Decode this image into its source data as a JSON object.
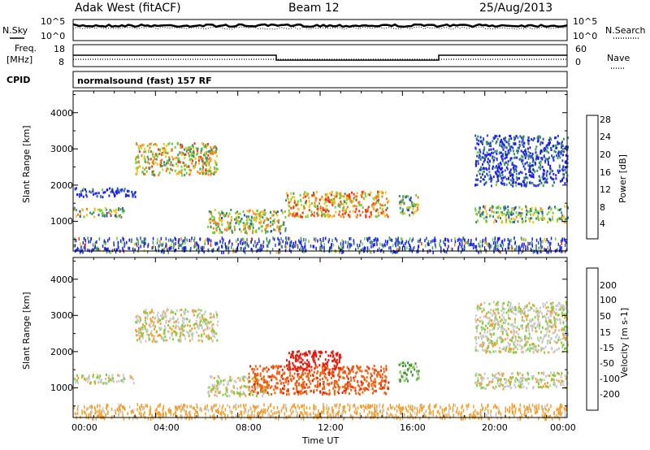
{
  "header": {
    "radar": "Adak West (fitACF)",
    "beam": "Beam 12",
    "date": "25/Aug/2013"
  },
  "strip": {
    "nsky_label": "N.Sky",
    "nsky_ticks": [
      "10^5",
      "10^0"
    ],
    "nsearch_label": "N.Search",
    "nsearch_ticks": [
      "10^5",
      "10^0"
    ],
    "freq_label_1": "Freq.",
    "freq_label_2": "[MHz]",
    "freq_ticks": [
      "18",
      "8"
    ],
    "nave_label": "Nave",
    "nave_ticks": [
      "60",
      "0"
    ],
    "cpid_label": "CPID",
    "cpid_text": "normalsound (fast) 157 RF"
  },
  "chart_data": [
    {
      "type": "heatmap",
      "title": "",
      "xlabel": "",
      "ylabel": "Slant Range [km]",
      "yticks": [
        "1000",
        "2000",
        "3000",
        "4000"
      ],
      "ylim": [
        180,
        4600
      ],
      "xlim": [
        0,
        24
      ],
      "colorbar_label": "Power [dB]",
      "colorbar_ticks": [
        "4",
        "8",
        "12",
        "16",
        "20",
        "24",
        "28"
      ],
      "colorbar_colors": [
        "#1a1aff",
        "#2a4fb8",
        "#3f8f6a",
        "#6fcf3a",
        "#f0c020",
        "#f08020",
        "#ff3010"
      ],
      "echo_regions": [
        {
          "t": [
            0.0,
            2.5
          ],
          "range": [
            1150,
            1400
          ],
          "level": 0.5
        },
        {
          "t": [
            0.0,
            3.0
          ],
          "range": [
            1700,
            1950
          ],
          "level": 0.15
        },
        {
          "t": [
            3.0,
            7.0
          ],
          "range": [
            2300,
            3200
          ],
          "level": 0.6
        },
        {
          "t": [
            6.5,
            10.3
          ],
          "range": [
            700,
            1350
          ],
          "level": 0.55
        },
        {
          "t": [
            10.3,
            15.3
          ],
          "range": [
            1150,
            1850
          ],
          "level": 0.7
        },
        {
          "t": [
            15.8,
            16.8
          ],
          "range": [
            1200,
            1750
          ],
          "level": 0.45
        },
        {
          "t": [
            19.5,
            24.0
          ],
          "range": [
            1000,
            1450
          ],
          "level": 0.45
        },
        {
          "t": [
            19.5,
            24.0
          ],
          "range": [
            2000,
            3400
          ],
          "level": 0.15
        }
      ]
    },
    {
      "type": "heatmap",
      "title": "",
      "xlabel": "Time UT",
      "ylabel": "Slant Range [km]",
      "xticks": [
        "00:00",
        "04:00",
        "08:00",
        "12:00",
        "16:00",
        "20:00",
        "00:00"
      ],
      "yticks": [
        "1000",
        "2000",
        "3000",
        "4000"
      ],
      "ylim": [
        180,
        4600
      ],
      "xlim": [
        0,
        24
      ],
      "colorbar_label": "Velocity [m s-1]",
      "colorbar_ticks": [
        "200",
        "100",
        "50",
        "15",
        "-15",
        "-50",
        "-100",
        "-200"
      ],
      "colorbar_colors": [
        "#2030c0",
        "#2e6e9e",
        "#3f8f3a",
        "#7fcf3a",
        "#c8c8c8",
        "#f0a030",
        "#f06010",
        "#e02010",
        "#ff0000"
      ],
      "echo_regions": [
        {
          "t": [
            0.0,
            3.0
          ],
          "range": [
            1150,
            1400
          ],
          "velocity": 0
        },
        {
          "t": [
            3.0,
            7.0
          ],
          "range": [
            2300,
            3200
          ],
          "velocity": 0
        },
        {
          "t": [
            6.5,
            9.5
          ],
          "range": [
            800,
            1350
          ],
          "velocity": 0
        },
        {
          "t": [
            8.5,
            15.3
          ],
          "range": [
            850,
            1650
          ],
          "velocity": -80
        },
        {
          "t": [
            10.3,
            13.0
          ],
          "range": [
            1500,
            2050
          ],
          "velocity": -180
        },
        {
          "t": [
            15.8,
            16.8
          ],
          "range": [
            1200,
            1750
          ],
          "velocity": 30
        },
        {
          "t": [
            19.5,
            24.0
          ],
          "range": [
            1000,
            1450
          ],
          "velocity": 0
        },
        {
          "t": [
            19.5,
            24.0
          ],
          "range": [
            2000,
            3400
          ],
          "velocity": 0
        }
      ]
    }
  ]
}
